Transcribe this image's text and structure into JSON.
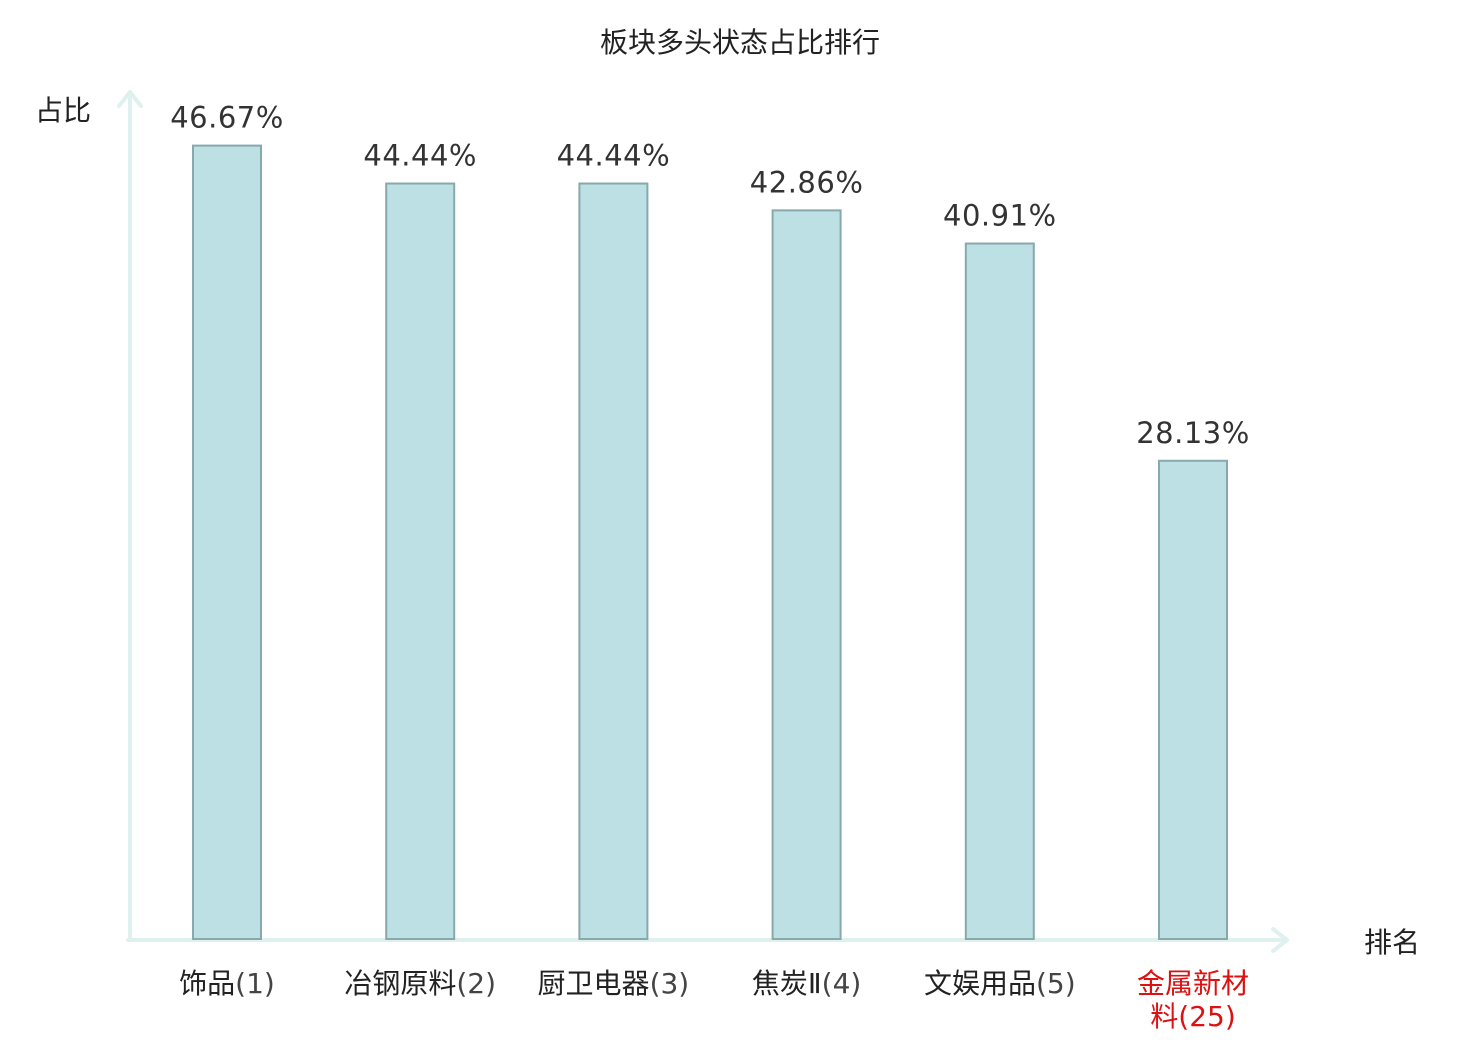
{
  "chart_data": {
    "type": "bar",
    "title": "板块多头状态占比排行",
    "ylabel": "占比",
    "xlabel": "排名",
    "ylim": [
      0,
      50
    ],
    "grid": false,
    "categories": [
      "饰品",
      "冶钢原料",
      "厨卫电器",
      "焦炭Ⅱ",
      "文娱用品",
      "金属新材料"
    ],
    "ranks": [
      "(1)",
      "(2)",
      "(3)",
      "(4)",
      "(5)",
      "(25)"
    ],
    "values": [
      46.67,
      44.44,
      44.44,
      42.86,
      40.91,
      28.13
    ],
    "value_labels": [
      "46.67%",
      "44.44%",
      "44.44%",
      "42.86%",
      "40.91%",
      "28.13%"
    ],
    "highlight_index": 5,
    "colors": {
      "bar_fill": "#bce0e3",
      "bar_stroke": "#88a9ac",
      "axis": "#dff1ef",
      "highlight_text": "#dd1111"
    }
  }
}
